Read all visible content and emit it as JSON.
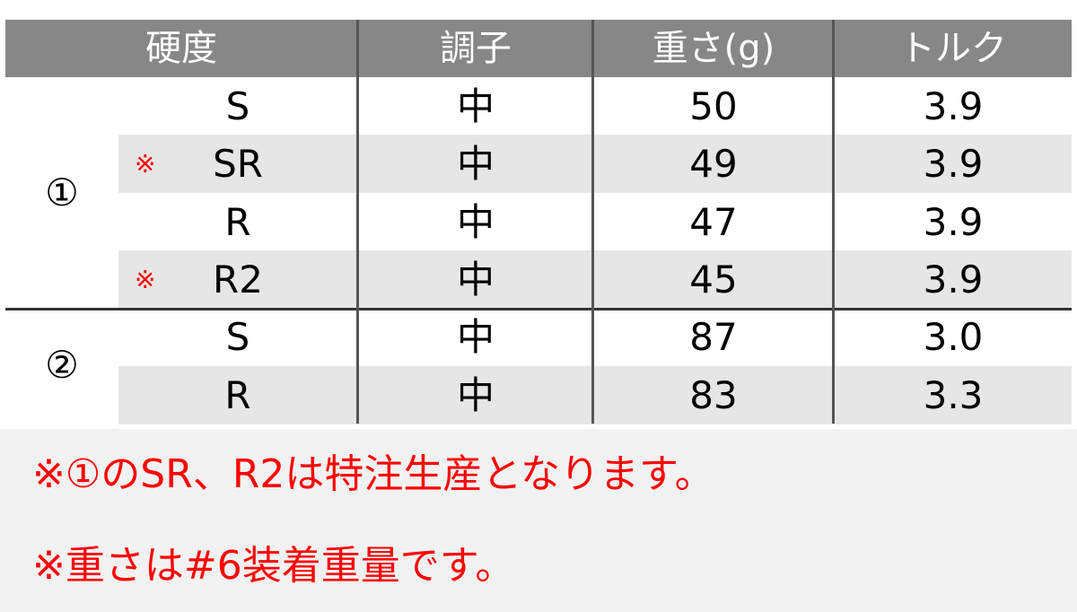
{
  "table": {
    "headers": [
      "硬度",
      "調子",
      "重さ(g)",
      "トルク"
    ],
    "groups": [
      {
        "label": "①",
        "rows": [
          {
            "flex": "S",
            "special": false,
            "kick": "中",
            "weight": "50",
            "torque": "3.9"
          },
          {
            "flex": "SR",
            "special": true,
            "kick": "中",
            "weight": "49",
            "torque": "3.9"
          },
          {
            "flex": "R",
            "special": false,
            "kick": "中",
            "weight": "47",
            "torque": "3.9"
          },
          {
            "flex": "R2",
            "special": true,
            "kick": "中",
            "weight": "45",
            "torque": "3.9"
          }
        ]
      },
      {
        "label": "②",
        "rows": [
          {
            "flex": "S",
            "special": false,
            "kick": "中",
            "weight": "87",
            "torque": "3.0"
          },
          {
            "flex": "R",
            "special": false,
            "kick": "中",
            "weight": "83",
            "torque": "3.3"
          }
        ]
      }
    ],
    "special_mark": "※"
  },
  "notes": [
    "※①のSR、R2は特注生産となります。",
    "※重さは#6装着重量です。"
  ],
  "colors": {
    "header_bg": "#878787",
    "alt_row": "#e6e6e6",
    "note_text": "#ff0000",
    "notes_bg": "#f2f2f2"
  }
}
